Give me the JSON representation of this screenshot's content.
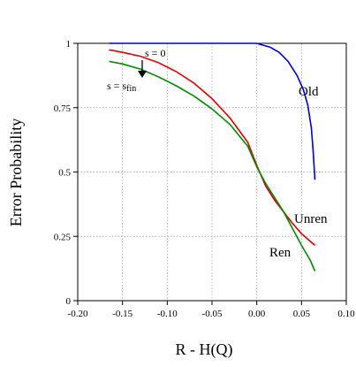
{
  "chart_data": {
    "type": "line",
    "xlabel": "R - H(Q)",
    "ylabel": "Error Probability",
    "xlim": [
      -0.2,
      0.1
    ],
    "ylim": [
      0,
      1
    ],
    "grid": true,
    "x_ticks": [
      -0.2,
      -0.15,
      -0.1,
      -0.05,
      0.0,
      0.05,
      0.1
    ],
    "x_tick_labels": [
      "-0.20",
      "-0.15",
      "-0.10",
      "-0.05",
      "0.00",
      "0.05",
      "0.10"
    ],
    "y_ticks": [
      0,
      0.25,
      0.5,
      0.75,
      1
    ],
    "y_tick_labels": [
      "0",
      "0.25",
      "0.5",
      "0.75",
      "1"
    ],
    "series": [
      {
        "name": "Old",
        "color": "#0000cc",
        "points": [
          [
            -0.165,
            1.0
          ],
          [
            -0.1,
            1.0
          ],
          [
            -0.05,
            1.0
          ],
          [
            0.0,
            1.0
          ],
          [
            0.005,
            0.995
          ],
          [
            0.015,
            0.985
          ],
          [
            0.025,
            0.965
          ],
          [
            0.035,
            0.93
          ],
          [
            0.045,
            0.875
          ],
          [
            0.052,
            0.82
          ],
          [
            0.057,
            0.76
          ],
          [
            0.061,
            0.67
          ],
          [
            0.063,
            0.58
          ],
          [
            0.065,
            0.47
          ]
        ]
      },
      {
        "name": "Unren",
        "color": "#dd0000",
        "points": [
          [
            -0.165,
            0.975
          ],
          [
            -0.15,
            0.965
          ],
          [
            -0.13,
            0.95
          ],
          [
            -0.11,
            0.925
          ],
          [
            -0.09,
            0.89
          ],
          [
            -0.07,
            0.845
          ],
          [
            -0.05,
            0.785
          ],
          [
            -0.03,
            0.71
          ],
          [
            -0.01,
            0.615
          ],
          [
            0.0,
            0.525
          ],
          [
            0.01,
            0.445
          ],
          [
            0.02,
            0.39
          ],
          [
            0.03,
            0.345
          ],
          [
            0.04,
            0.3
          ],
          [
            0.05,
            0.26
          ],
          [
            0.06,
            0.23
          ],
          [
            0.065,
            0.215
          ]
        ]
      },
      {
        "name": "Ren",
        "color": "#008800",
        "points": [
          [
            -0.165,
            0.93
          ],
          [
            -0.15,
            0.92
          ],
          [
            -0.13,
            0.9
          ],
          [
            -0.11,
            0.87
          ],
          [
            -0.09,
            0.835
          ],
          [
            -0.07,
            0.795
          ],
          [
            -0.05,
            0.745
          ],
          [
            -0.03,
            0.685
          ],
          [
            -0.01,
            0.6
          ],
          [
            0.0,
            0.52
          ],
          [
            0.01,
            0.455
          ],
          [
            0.02,
            0.4
          ],
          [
            0.03,
            0.345
          ],
          [
            0.04,
            0.28
          ],
          [
            0.05,
            0.215
          ],
          [
            0.06,
            0.155
          ],
          [
            0.065,
            0.115
          ]
        ]
      }
    ],
    "annotations": {
      "s_zero": "s = 0",
      "s_fin": "s = s",
      "s_fin_sub": "fin"
    }
  }
}
